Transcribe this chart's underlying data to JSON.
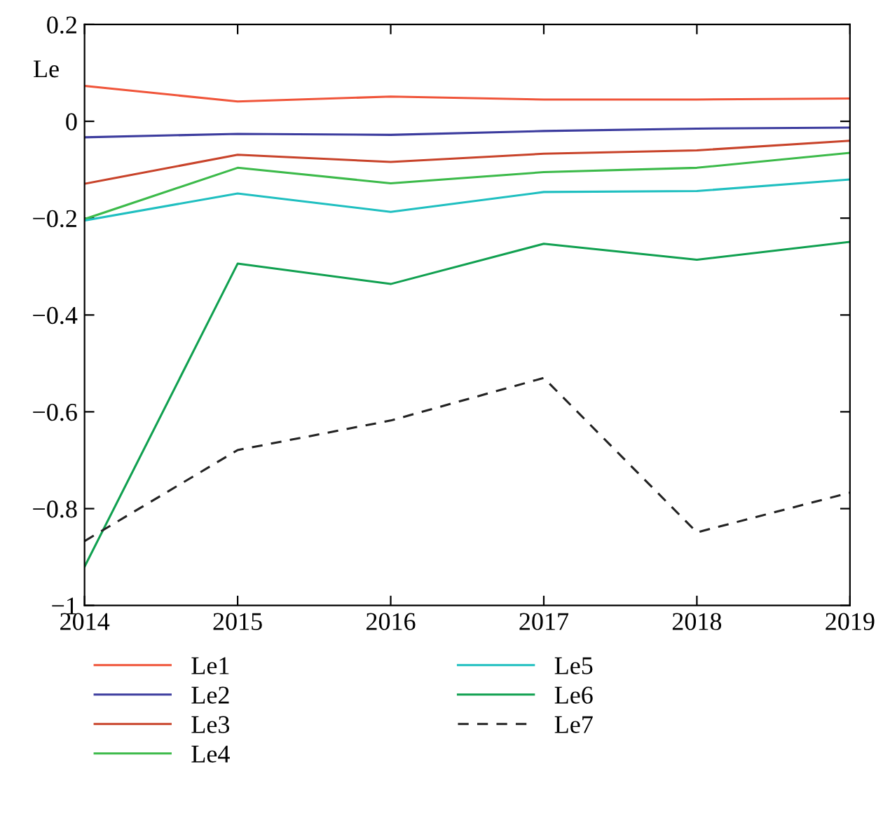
{
  "chart_data": {
    "type": "line",
    "ylabel": "Le",
    "x": [
      2014,
      2015,
      2016,
      2017,
      2018,
      2019
    ],
    "xlim": [
      2014,
      2019
    ],
    "xticks": [
      2014,
      2015,
      2016,
      2017,
      2018,
      2019
    ],
    "ylim": [
      -1,
      0.2
    ],
    "yticks": [
      {
        "value": -1,
        "label": "−1"
      },
      {
        "value": -0.8,
        "label": "−0.8"
      },
      {
        "value": -0.6,
        "label": "−0.6"
      },
      {
        "value": -0.4,
        "label": "−0.4"
      },
      {
        "value": -0.2,
        "label": "−0.2"
      },
      0,
      0.2
    ],
    "grid": false,
    "legend": "bottom",
    "marker": "none",
    "series": [
      {
        "name": "Le1",
        "color": "#f0553a",
        "values": [
          0.073,
          0.041,
          0.051,
          0.045,
          0.045,
          0.047
        ]
      },
      {
        "name": "Le2",
        "color": "#3c3c9e",
        "values": [
          -0.033,
          -0.026,
          -0.028,
          -0.02,
          -0.015,
          -0.013
        ]
      },
      {
        "name": "Le3",
        "color": "#c8432a",
        "values": [
          -0.129,
          -0.069,
          -0.084,
          -0.067,
          -0.06,
          -0.04
        ]
      },
      {
        "name": "Le4",
        "color": "#3cba4a",
        "values": [
          -0.202,
          -0.096,
          -0.128,
          -0.105,
          -0.096,
          -0.065
        ]
      },
      {
        "name": "Le5",
        "color": "#1fbfc0",
        "values": [
          -0.205,
          -0.149,
          -0.187,
          -0.146,
          -0.144,
          -0.12
        ]
      },
      {
        "name": "Le6",
        "color": "#10a050",
        "values": [
          -0.92,
          -0.294,
          -0.336,
          -0.253,
          -0.286,
          -0.249
        ]
      },
      {
        "name": "Le7",
        "color": "#222222",
        "line_style": "dashed",
        "values": [
          -0.867,
          -0.679,
          -0.618,
          -0.53,
          -0.849,
          -0.767
        ]
      }
    ]
  }
}
